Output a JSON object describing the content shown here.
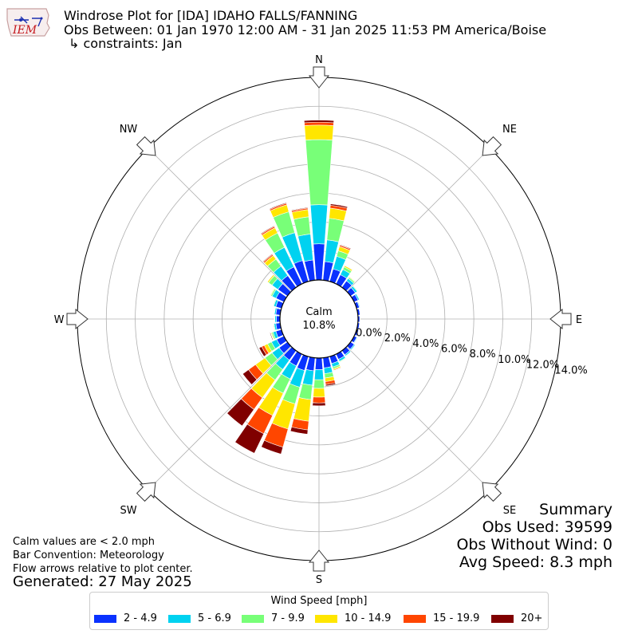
{
  "title": {
    "line1": "Windrose Plot for [IDA] IDAHO FALLS/FANNING",
    "line2": "Obs Between: 01 Jan 1970 12:00 AM - 31 Jan 2025 11:53 PM America/Boise",
    "line3": "↳ constraints: Jan"
  },
  "logo": {
    "text": "IEM"
  },
  "directions": [
    "N",
    "NE",
    "E",
    "SE",
    "S",
    "SW",
    "W",
    "NW"
  ],
  "calm": {
    "label": "Calm",
    "value": "10.8%"
  },
  "notes": {
    "line1": "Calm values are < 2.0 mph",
    "line2": "Bar Convention: Meteorology",
    "line3": "Flow arrows relative to plot center.",
    "generated": "Generated: 27 May 2025"
  },
  "summary": {
    "title": "Summary",
    "obs_used": "Obs Used: 39599",
    "obs_without_wind": "Obs Without Wind: 0",
    "avg_speed": "Avg Speed: 8.3 mph"
  },
  "colors": {
    "2-4.9": "#0a32ff",
    "5-6.9": "#00d2f0",
    "7-9.9": "#78ff78",
    "10-14.9": "#ffe600",
    "15-19.9": "#ff4600",
    "20+": "#800000"
  },
  "chart_data": {
    "type": "windrose",
    "radial_unit": "%",
    "radial_ticks": [
      "0.0%",
      "2.0%",
      "4.0%",
      "6.0%",
      "8.0%",
      "10.0%",
      "12.0%",
      "14.0%"
    ],
    "rmax": 14.0,
    "legend_title": "Wind Speed [mph]",
    "bins": [
      "2 - 4.9",
      "5 - 6.9",
      "7 - 9.9",
      "10 - 14.9",
      "15 - 19.9",
      "20+"
    ],
    "directions_deg": [
      0,
      10,
      20,
      30,
      40,
      50,
      60,
      70,
      80,
      90,
      100,
      110,
      120,
      130,
      140,
      150,
      160,
      170,
      180,
      190,
      200,
      210,
      220,
      230,
      240,
      250,
      260,
      270,
      280,
      290,
      300,
      310,
      320,
      330,
      340,
      350
    ],
    "stacks": [
      [
        2.5,
        2.7,
        4.5,
        1.0,
        0.2,
        0.15
      ],
      [
        1.3,
        1.5,
        1.5,
        0.7,
        0.2,
        0.1
      ],
      [
        0.9,
        0.9,
        0.4,
        0.3,
        0.1,
        0.05
      ],
      [
        0.7,
        0.4,
        0.2,
        0.1,
        0.03,
        0.02
      ],
      [
        0.55,
        0.2,
        0.1,
        0.05,
        0.02,
        0.0
      ],
      [
        0.4,
        0.15,
        0.05,
        0.02,
        0.0,
        0.0
      ],
      [
        0.3,
        0.1,
        0.03,
        0.0,
        0.0,
        0.0
      ],
      [
        0.2,
        0.05,
        0.0,
        0.0,
        0.0,
        0.0
      ],
      [
        0.15,
        0.03,
        0.0,
        0.0,
        0.0,
        0.0
      ],
      [
        0.12,
        0.02,
        0.0,
        0.0,
        0.0,
        0.0
      ],
      [
        0.12,
        0.02,
        0.0,
        0.0,
        0.0,
        0.0
      ],
      [
        0.15,
        0.03,
        0.0,
        0.0,
        0.0,
        0.0
      ],
      [
        0.2,
        0.05,
        0.0,
        0.0,
        0.0,
        0.0
      ],
      [
        0.3,
        0.08,
        0.02,
        0.0,
        0.0,
        0.0
      ],
      [
        0.35,
        0.1,
        0.03,
        0.0,
        0.0,
        0.0
      ],
      [
        0.4,
        0.15,
        0.05,
        0.02,
        0.0,
        0.0
      ],
      [
        0.5,
        0.25,
        0.12,
        0.08,
        0.05,
        0.03
      ],
      [
        0.7,
        0.4,
        0.3,
        0.25,
        0.2,
        0.1
      ],
      [
        0.8,
        0.7,
        0.6,
        0.6,
        0.4,
        0.2
      ],
      [
        0.9,
        1.0,
        1.0,
        1.5,
        0.6,
        0.3
      ],
      [
        1.0,
        1.2,
        1.2,
        1.8,
        1.3,
        0.5
      ],
      [
        0.9,
        1.0,
        1.1,
        1.7,
        1.4,
        1.5
      ],
      [
        0.8,
        0.8,
        0.9,
        1.5,
        1.0,
        1.4
      ],
      [
        0.7,
        0.6,
        0.6,
        0.8,
        0.6,
        0.5
      ],
      [
        0.55,
        0.4,
        0.3,
        0.25,
        0.2,
        0.2
      ],
      [
        0.4,
        0.2,
        0.1,
        0.05,
        0.03,
        0.05
      ],
      [
        0.3,
        0.12,
        0.05,
        0.03,
        0.0,
        0.02
      ],
      [
        0.25,
        0.1,
        0.03,
        0.02,
        0.0,
        0.0
      ],
      [
        0.3,
        0.1,
        0.03,
        0.0,
        0.0,
        0.0
      ],
      [
        0.4,
        0.15,
        0.05,
        0.02,
        0.0,
        0.0
      ],
      [
        0.6,
        0.3,
        0.1,
        0.05,
        0.02,
        0.0
      ],
      [
        0.8,
        0.5,
        0.3,
        0.1,
        0.03,
        0.0
      ],
      [
        1.0,
        0.8,
        0.6,
        0.3,
        0.1,
        0.05
      ],
      [
        1.3,
        1.5,
        1.1,
        0.4,
        0.1,
        0.05
      ],
      [
        1.5,
        2.0,
        1.5,
        0.5,
        0.1,
        0.05
      ],
      [
        1.4,
        1.8,
        1.2,
        0.5,
        0.1,
        0.05
      ]
    ]
  }
}
